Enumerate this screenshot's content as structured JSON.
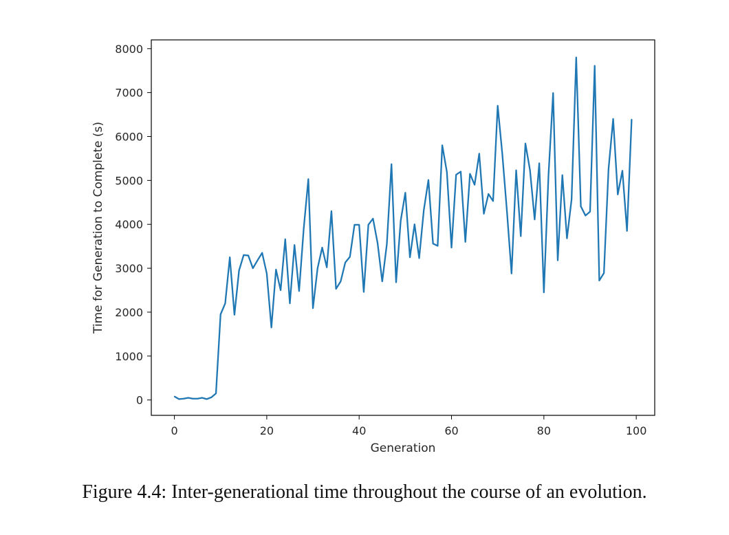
{
  "chart_data": {
    "type": "line",
    "xlabel": "Generation",
    "ylabel": "Time for Generation to Complete (s)",
    "xlim": [
      -5,
      104
    ],
    "ylim": [
      -350,
      8200
    ],
    "xticks": [
      0,
      20,
      40,
      60,
      80,
      100
    ],
    "yticks": [
      0,
      1000,
      2000,
      3000,
      4000,
      5000,
      6000,
      7000,
      8000
    ],
    "grid": false,
    "line_color": "#1f77b4",
    "series": [
      {
        "x": [
          0,
          1,
          2,
          3,
          4,
          5,
          6,
          7,
          8,
          9,
          10,
          11,
          12,
          13,
          14,
          15,
          16,
          17,
          18,
          19,
          20,
          21,
          22,
          23,
          24,
          25,
          26,
          27,
          28,
          29,
          30,
          31,
          32,
          33,
          34,
          35,
          36,
          37,
          38,
          39,
          40,
          41,
          42,
          43,
          44,
          45,
          46,
          47,
          48,
          49,
          50,
          51,
          52,
          53,
          54,
          55,
          56,
          57,
          58,
          59,
          60,
          61,
          62,
          63,
          64,
          65,
          66,
          67,
          68,
          69,
          70,
          71,
          72,
          73,
          74,
          75,
          76,
          77,
          78,
          79,
          80,
          81,
          82,
          83,
          84,
          85,
          86,
          87,
          88,
          89,
          90,
          91,
          92,
          93,
          94,
          95,
          96,
          97,
          98,
          99
        ],
        "values": [
          80,
          20,
          30,
          50,
          30,
          30,
          50,
          20,
          60,
          150,
          1950,
          2200,
          3250,
          1940,
          2950,
          3300,
          3290,
          3000,
          3180,
          3350,
          2880,
          1650,
          2970,
          2500,
          3660,
          2200,
          3530,
          2480,
          3900,
          5030,
          2090,
          3000,
          3470,
          3020,
          4300,
          2530,
          2700,
          3130,
          3260,
          3990,
          3990,
          2460,
          3990,
          4130,
          3570,
          2700,
          3550,
          5370,
          2680,
          4080,
          4720,
          3250,
          4000,
          3230,
          4320,
          5010,
          3560,
          3510,
          5800,
          5190,
          3470,
          5130,
          5200,
          3600,
          5150,
          4900,
          5610,
          4240,
          4690,
          4530,
          6700,
          5600,
          4300,
          2880,
          5230,
          3730,
          5840,
          5230,
          4110,
          5390,
          2450,
          5120,
          6990,
          3180,
          5120,
          3680,
          4570,
          7800,
          4410,
          4200,
          4290,
          7610,
          2720,
          2890,
          5260,
          6400,
          4680,
          5220,
          3850,
          6390
        ]
      }
    ]
  },
  "caption": "Figure 4.4: Inter-generational time throughout the course of an evolution."
}
